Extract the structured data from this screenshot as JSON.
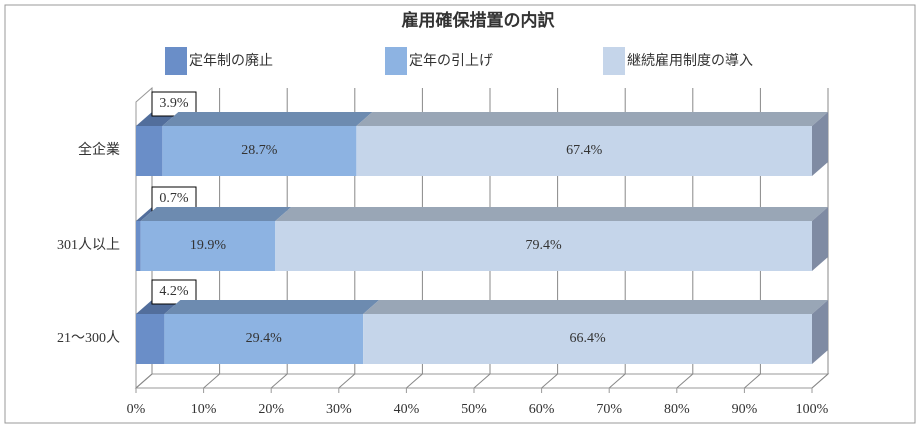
{
  "chart_data": {
    "type": "bar3d_stacked_horizontal",
    "title": "雇用確保措置の内訳",
    "categories": [
      "全企業",
      "301人以上",
      "21〜300人"
    ],
    "series": [
      {
        "name": "定年制の廃止",
        "color": "#6a8ec8",
        "values": [
          3.9,
          0.7,
          4.2
        ],
        "value_labels": [
          "3.9%",
          "0.7%",
          "4.2%"
        ]
      },
      {
        "name": "定年の引上げ",
        "color": "#8db3e2",
        "values": [
          28.7,
          19.9,
          29.4
        ],
        "value_labels": [
          "28.7%",
          "19.9%",
          "29.4%"
        ]
      },
      {
        "name": "継続雇用制度の導入",
        "color": "#c5d5ea",
        "values": [
          67.4,
          79.4,
          66.4
        ],
        "value_labels": [
          "67.4%",
          "79.4%",
          "66.4%"
        ]
      }
    ],
    "xlim": [
      0,
      100
    ],
    "xticks": [
      {
        "value": 0,
        "label": "0%"
      },
      {
        "value": 10,
        "label": "10%"
      },
      {
        "value": 20,
        "label": "20%"
      },
      {
        "value": 30,
        "label": "30%"
      },
      {
        "value": 40,
        "label": "40%"
      },
      {
        "value": 50,
        "label": "50%"
      },
      {
        "value": 60,
        "label": "60%"
      },
      {
        "value": 70,
        "label": "70%"
      },
      {
        "value": 80,
        "label": "80%"
      },
      {
        "value": 90,
        "label": "90%"
      },
      {
        "value": 100,
        "label": "100%"
      }
    ],
    "grid": true
  }
}
